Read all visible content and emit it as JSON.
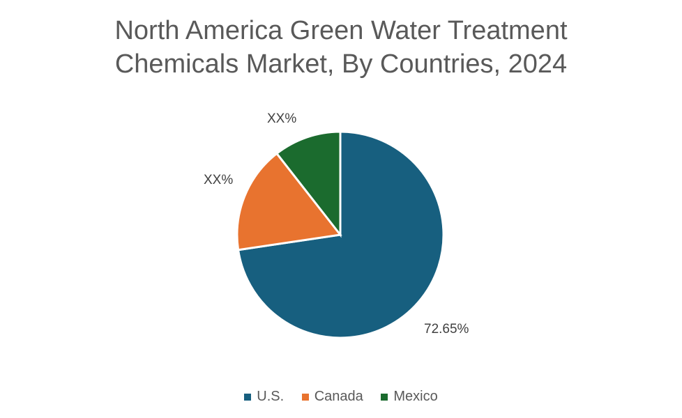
{
  "chart_data": {
    "type": "pie",
    "title_line1": "North America Green Water Treatment",
    "title_line2": "Chemicals Market, By Countries, 2024",
    "categories": [
      "U.S.",
      "Canada",
      "Mexico"
    ],
    "values": [
      72.65,
      16.8,
      10.55
    ],
    "data_labels": [
      "72.65%",
      "XX%",
      "XX%"
    ],
    "colors": [
      "#175F7F",
      "#E8732F",
      "#1B6B2E"
    ],
    "legend_position": "bottom"
  }
}
